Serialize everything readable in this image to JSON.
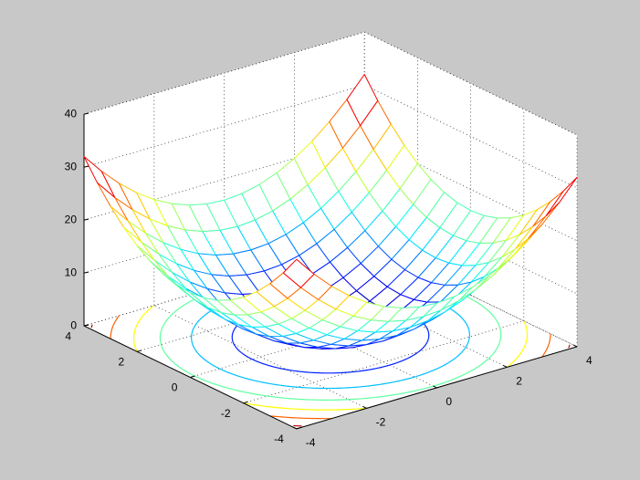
{
  "chart_data": {
    "type": "mesh",
    "colormap": "jet",
    "grid": true,
    "x": [
      -4,
      -3.5,
      -3,
      -2.5,
      -2,
      -1.5,
      -1,
      -0.5,
      0,
      0.5,
      1,
      1.5,
      2,
      2.5,
      3,
      3.5,
      4
    ],
    "y": [
      -4,
      -3.5,
      -3,
      -2.5,
      -2,
      -1.5,
      -1,
      -0.5,
      0,
      0.5,
      1,
      1.5,
      2,
      2.5,
      3,
      3.5,
      4
    ],
    "z": [
      [
        32,
        28.25,
        25,
        22.25,
        20,
        18.25,
        17,
        16.25,
        16,
        16.25,
        17,
        18.25,
        20,
        22.25,
        25,
        28.25,
        32
      ],
      [
        28.25,
        24.5,
        21.25,
        18.5,
        16.25,
        14.5,
        13.25,
        12.5,
        12.25,
        12.5,
        13.25,
        14.5,
        16.25,
        18.5,
        21.25,
        24.5,
        28.25
      ],
      [
        25,
        21.25,
        18,
        15.25,
        13,
        11.25,
        10,
        9.25,
        9,
        9.25,
        10,
        11.25,
        13,
        15.25,
        18,
        21.25,
        25
      ],
      [
        22.25,
        18.5,
        15.25,
        12.5,
        10.25,
        8.5,
        7.25,
        6.5,
        6.25,
        6.5,
        7.25,
        8.5,
        10.25,
        12.5,
        15.25,
        18.5,
        22.25
      ],
      [
        20,
        16.25,
        13,
        10.25,
        8,
        6.25,
        5,
        4.25,
        4,
        4.25,
        5,
        6.25,
        8,
        10.25,
        13,
        16.25,
        20
      ],
      [
        18.25,
        14.5,
        11.25,
        8.5,
        6.25,
        4.5,
        3.25,
        2.5,
        2.25,
        2.5,
        3.25,
        4.5,
        6.25,
        8.5,
        11.25,
        14.5,
        18.25
      ],
      [
        17,
        13.25,
        10,
        7.25,
        5,
        3.25,
        2,
        1.25,
        1,
        1.25,
        2,
        3.25,
        5,
        7.25,
        10,
        13.25,
        17
      ],
      [
        16.25,
        12.5,
        9.25,
        6.5,
        4.25,
        2.5,
        1.25,
        0.5,
        0.25,
        0.5,
        1.25,
        2.5,
        4.25,
        6.5,
        9.25,
        12.5,
        16.25
      ],
      [
        16,
        12.25,
        9,
        6.25,
        4,
        2.25,
        1,
        0.25,
        0,
        0.25,
        1,
        2.25,
        4,
        6.25,
        9,
        12.25,
        16
      ],
      [
        16.25,
        12.5,
        9.25,
        6.5,
        4.25,
        2.5,
        1.25,
        0.5,
        0.25,
        0.5,
        1.25,
        2.5,
        4.25,
        6.5,
        9.25,
        12.5,
        16.25
      ],
      [
        17,
        13.25,
        10,
        7.25,
        5,
        3.25,
        2,
        1.25,
        1,
        1.25,
        2,
        3.25,
        5,
        7.25,
        10,
        13.25,
        17
      ],
      [
        18.25,
        14.5,
        11.25,
        8.5,
        6.25,
        4.5,
        3.25,
        2.5,
        2.25,
        2.5,
        3.25,
        4.5,
        6.25,
        8.5,
        11.25,
        14.5,
        18.25
      ],
      [
        20,
        16.25,
        13,
        10.25,
        8,
        6.25,
        5,
        4.25,
        4,
        4.25,
        5,
        6.25,
        8,
        10.25,
        13,
        16.25,
        20
      ],
      [
        22.25,
        18.5,
        15.25,
        12.5,
        10.25,
        8.5,
        7.25,
        6.5,
        6.25,
        6.5,
        7.25,
        8.5,
        10.25,
        12.5,
        15.25,
        18.5,
        22.25
      ],
      [
        25,
        21.25,
        18,
        15.25,
        13,
        11.25,
        10,
        9.25,
        9,
        9.25,
        10,
        11.25,
        13,
        15.25,
        18,
        21.25,
        25
      ],
      [
        28.25,
        24.5,
        21.25,
        18.5,
        16.25,
        14.5,
        13.25,
        12.5,
        12.25,
        12.5,
        13.25,
        14.5,
        16.25,
        18.5,
        21.25,
        24.5,
        28.25
      ],
      [
        32,
        28.25,
        25,
        22.25,
        20,
        18.25,
        17,
        16.25,
        16,
        16.25,
        17,
        18.25,
        20,
        22.25,
        25,
        28.25,
        32
      ]
    ],
    "contour_levels": [
      5,
      10,
      15,
      20,
      25,
      30
    ],
    "xlim": [
      -4,
      4
    ],
    "ylim": [
      -4,
      4
    ],
    "zlim": [
      0,
      40
    ],
    "xticks": [
      -4,
      -2,
      0,
      2,
      4
    ],
    "yticks": [
      -4,
      -2,
      0,
      2,
      4
    ],
    "zticks": [
      0,
      10,
      20,
      30,
      40
    ]
  }
}
